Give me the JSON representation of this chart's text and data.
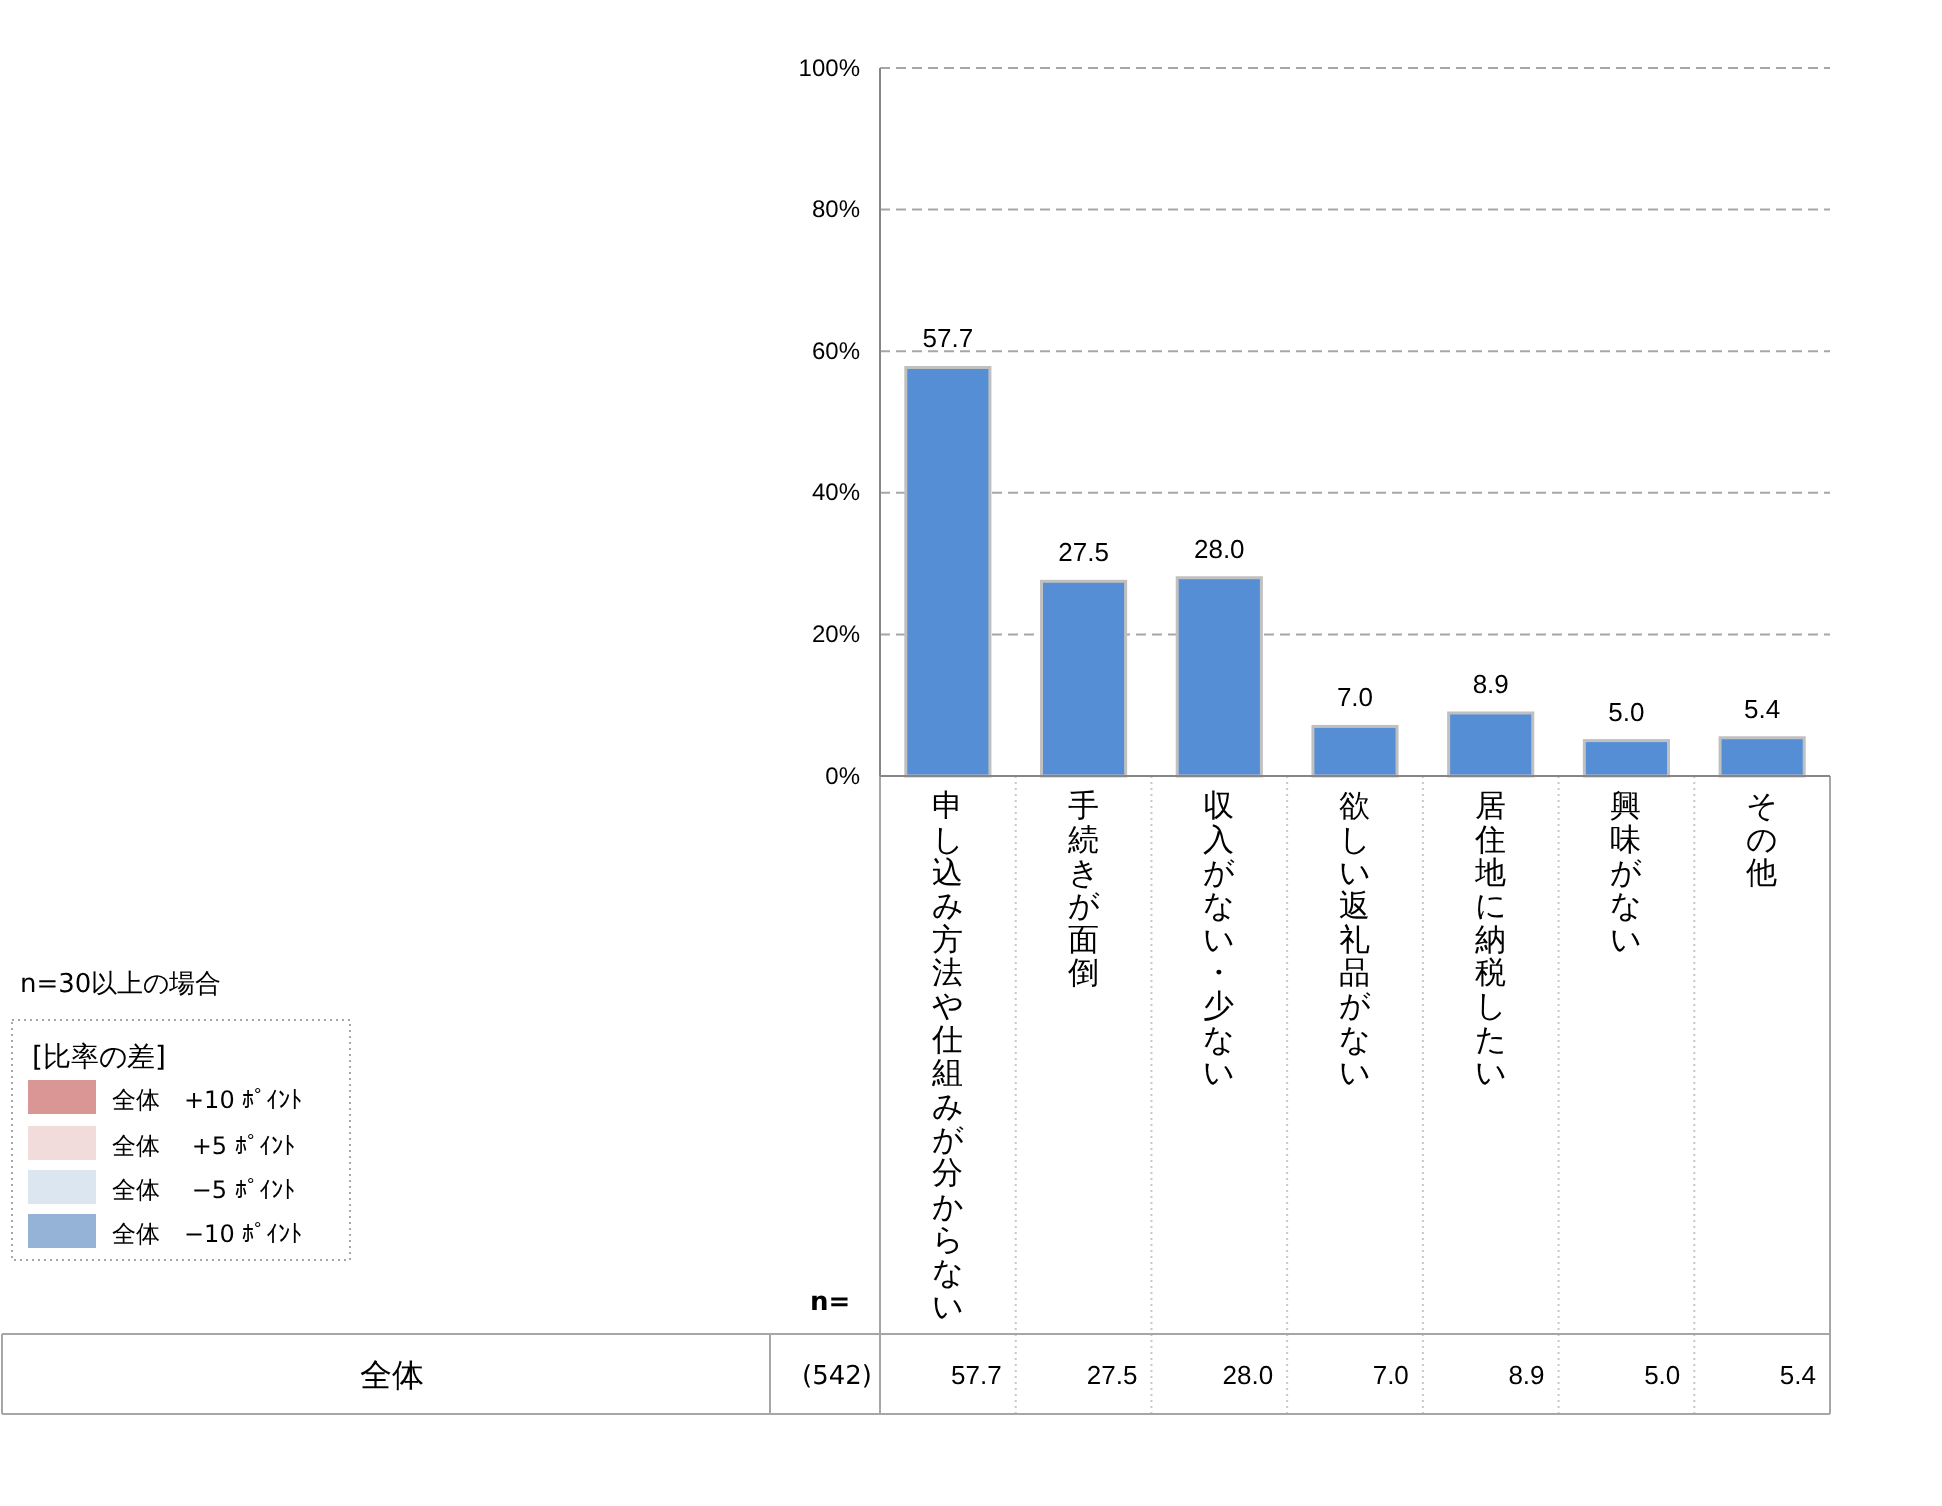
{
  "chart_data": {
    "type": "bar",
    "categories": [
      "申し込み方法や仕組みが分からない",
      "手続きが面倒",
      "収入がない・少ない",
      "欲しい返礼品がない",
      "居住地に納税したい",
      "興味がない",
      "その他"
    ],
    "values": [
      57.7,
      27.5,
      28.0,
      7.0,
      8.9,
      5.0,
      5.4
    ],
    "value_labels": [
      "57.7",
      "27.5",
      "28.0",
      "7.0",
      "8.9",
      "5.0",
      "5.4"
    ],
    "color": "#558ed5",
    "ylim": [
      0,
      100
    ],
    "yticks": [
      {
        "value": 0,
        "label": "0%"
      },
      {
        "value": 20,
        "label": "20%"
      },
      {
        "value": 40,
        "label": "40%"
      },
      {
        "value": 60,
        "label": "60%"
      },
      {
        "value": 80,
        "label": "80%"
      },
      {
        "value": 100,
        "label": "100%"
      }
    ],
    "grid": "y",
    "annotations": [
      "n=30以上の場合",
      "[比率の差]",
      "全体　+10 ﾎﾟｲﾝﾄ",
      "全体　 +5 ﾎﾟｲﾝﾄ",
      "全体　 −5 ﾎﾟｲﾝﾄ",
      "全体　−10 ﾎﾟｲﾝﾄ",
      "n=",
      "全体",
      "(542)"
    ]
  }
}
